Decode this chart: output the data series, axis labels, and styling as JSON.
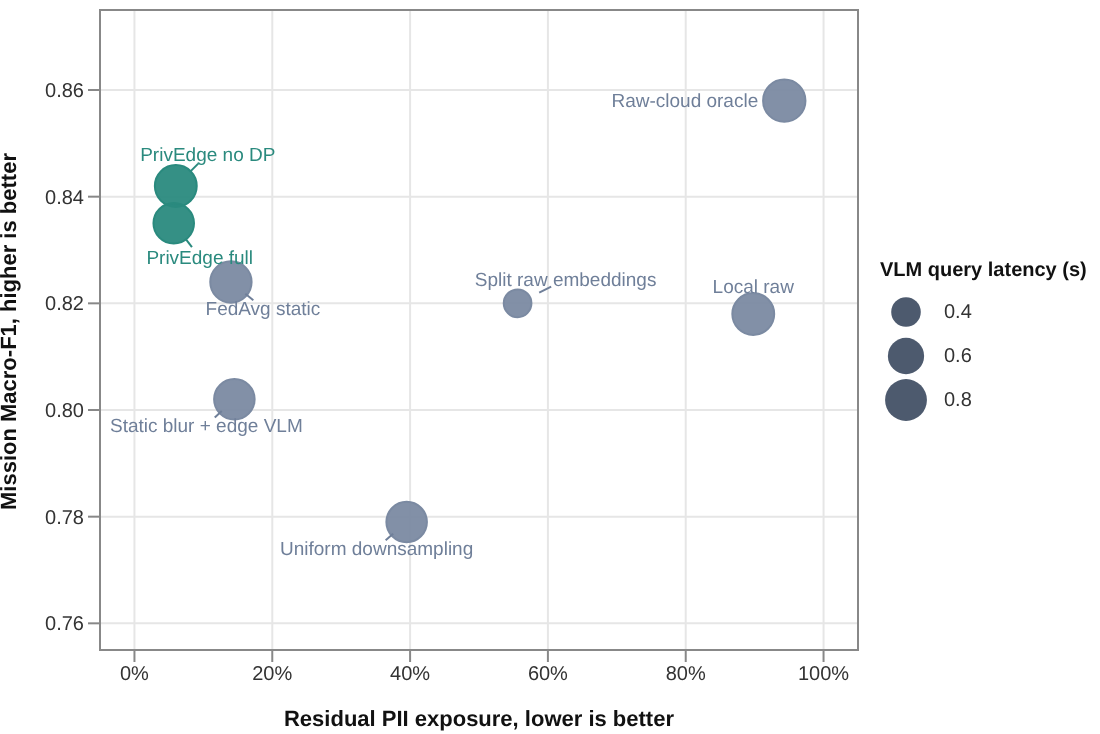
{
  "chart_data": {
    "type": "bubble",
    "xlabel": "Residual PII exposure, lower is better",
    "ylabel": "Mission Macro-F1, higher is better",
    "legend_title": "VLM query latency (s)",
    "grid": true,
    "x": [
      0.06,
      0.057,
      0.14,
      0.145,
      0.395,
      0.556,
      0.898,
      0.943
    ],
    "values": [
      0.842,
      0.835,
      0.824,
      0.802,
      0.779,
      0.82,
      0.818,
      0.858
    ],
    "sizes": [
      0.8,
      0.75,
      0.78,
      0.75,
      0.75,
      0.35,
      0.8,
      0.82
    ],
    "colors": [
      "#2a8a7e",
      "#2a8a7e",
      "#7b8aa2",
      "#7b8aa2",
      "#7b8aa2",
      "#7b8aa2",
      "#7b8aa2",
      "#7b8aa2"
    ],
    "size_legend": [
      0.4,
      0.6,
      0.8
    ],
    "xlim": [
      -0.05,
      1.05
    ],
    "ylim": [
      0.755,
      0.875
    ],
    "xticks": [
      {
        "value": 0,
        "label": "0%"
      },
      {
        "value": 0.2,
        "label": "20%"
      },
      {
        "value": 0.4,
        "label": "40%"
      },
      {
        "value": 0.6,
        "label": "60%"
      },
      {
        "value": 0.8,
        "label": "80%"
      },
      {
        "value": 1,
        "label": "100%"
      }
    ],
    "yticks": [
      0.76,
      0.78,
      {
        "value": 0.8,
        "label": "0.80"
      },
      0.82,
      0.84,
      0.86
    ],
    "annotations": [
      {
        "text": "PrivEdge no DP",
        "x": 0.06,
        "y": 0.842
      },
      {
        "text": "PrivEdge full",
        "x": 0.057,
        "y": 0.835
      },
      {
        "text": "FedAvg static",
        "x": 0.14,
        "y": 0.824
      },
      {
        "text": "Static blur + edge VLM",
        "x": 0.145,
        "y": 0.802
      },
      {
        "text": "Uniform downsampling",
        "x": 0.395,
        "y": 0.779
      },
      {
        "text": "Split raw embeddings",
        "x": 0.556,
        "y": 0.82
      },
      {
        "text": "Local raw",
        "x": 0.898,
        "y": 0.818
      },
      {
        "text": "Raw-cloud oracle",
        "x": 0.943,
        "y": 0.858
      }
    ]
  }
}
